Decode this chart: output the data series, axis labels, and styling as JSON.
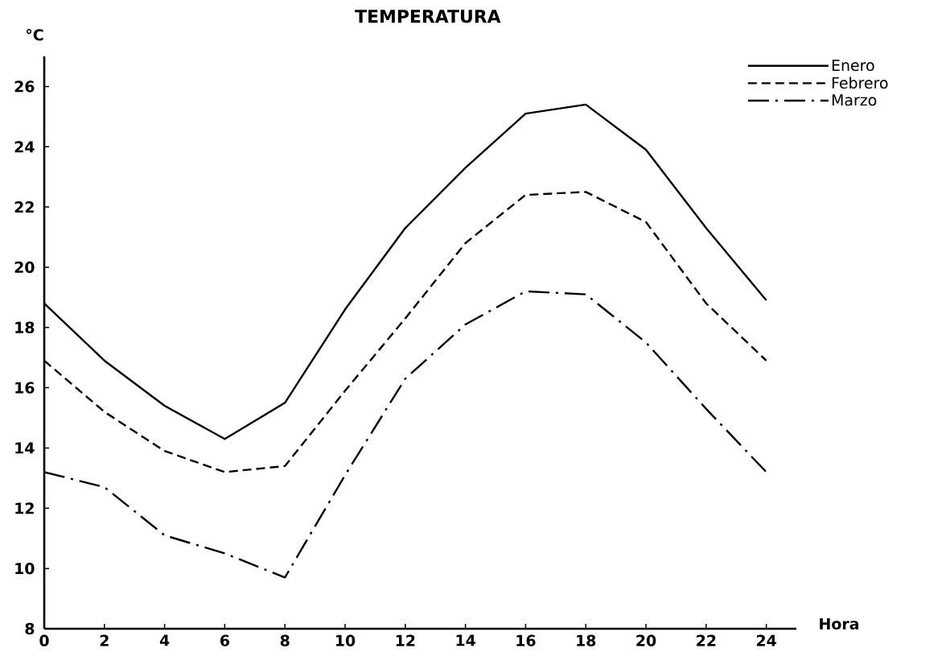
{
  "chart_data": {
    "type": "line",
    "title": "TEMPERATURA",
    "xlabel": "Hora",
    "ylabel": "°C",
    "x": [
      0,
      2,
      4,
      6,
      8,
      10,
      12,
      14,
      16,
      18,
      20,
      22,
      24
    ],
    "series": [
      {
        "name": "Enero",
        "color": "#000000",
        "line_style": "solid",
        "values": [
          18.8,
          16.9,
          15.4,
          14.3,
          15.5,
          18.6,
          21.3,
          23.3,
          25.1,
          25.4,
          23.9,
          21.3,
          18.9
        ]
      },
      {
        "name": "Febrero",
        "color": "#000000",
        "line_style": "dashed",
        "values": [
          16.9,
          15.2,
          13.9,
          13.2,
          13.4,
          15.9,
          18.3,
          20.8,
          22.4,
          22.5,
          21.5,
          18.8,
          16.9
        ]
      },
      {
        "name": "Marzo",
        "color": "#000000",
        "line_style": "dashdot",
        "values": [
          13.2,
          12.7,
          11.1,
          10.5,
          9.7,
          13.1,
          16.3,
          18.1,
          19.2,
          19.1,
          17.5,
          15.3,
          13.2
        ]
      }
    ],
    "xlim": [
      0,
      25
    ],
    "ylim": [
      8,
      27
    ],
    "xticks": [
      0,
      2,
      4,
      6,
      8,
      10,
      12,
      14,
      16,
      18,
      20,
      22,
      24
    ],
    "yticks": [
      8,
      10,
      12,
      14,
      16,
      18,
      20,
      22,
      24,
      26
    ],
    "grid": false,
    "legend": "top right"
  }
}
